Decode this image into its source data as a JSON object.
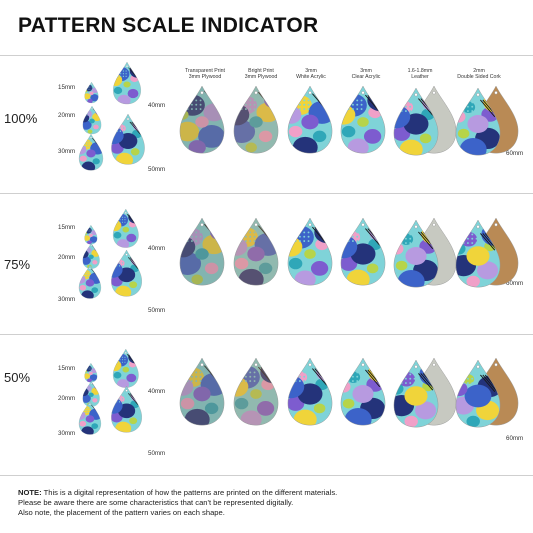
{
  "title": "PATTERN SCALE INDICATOR",
  "materials": [
    {
      "line1": "Transparent Print",
      "line2": "3mm Plywood",
      "fill": "#9a8a78"
    },
    {
      "line1": "Bright Print",
      "line2": "3mm Plywood",
      "fill": "#b58a63"
    },
    {
      "line1": "3mm",
      "line2": "White Acrylic",
      "fill": "#ffffff"
    },
    {
      "line1": "3mm",
      "line2": "Clear Acrylic",
      "fill": "#d8d8d8"
    },
    {
      "line1": "1.6-1.8mm",
      "line2": "Leather",
      "fill": "#c7c9c1"
    },
    {
      "line1": "2mm",
      "line2": "Double Sided Cork",
      "fill": "#b98a55"
    }
  ],
  "sizes": [
    "15mm",
    "20mm",
    "30mm",
    "40mm",
    "50mm"
  ],
  "big_size": "60mm",
  "scales": [
    "100%",
    "75%",
    "50%"
  ],
  "note": {
    "bold": "NOTE:",
    "line1": " This is a digital representation of how the patterns are printed on the different materials.",
    "line2": "Please be aware there are some characteristics that can't be represented digitally.",
    "line3": "Also note, the placement of the pattern varies on each shape."
  },
  "colors": {
    "navy": "#24337a",
    "blue": "#3c63c9",
    "teal": "#2fa7b8",
    "aqua": "#7fd3d8",
    "yellow": "#f0d43a",
    "lime": "#b6d44a",
    "pink": "#f0a0c8",
    "lilac": "#b79ae0",
    "purple": "#7d5ccf",
    "green": "#4fa07a",
    "black": "#1a1a1a"
  }
}
